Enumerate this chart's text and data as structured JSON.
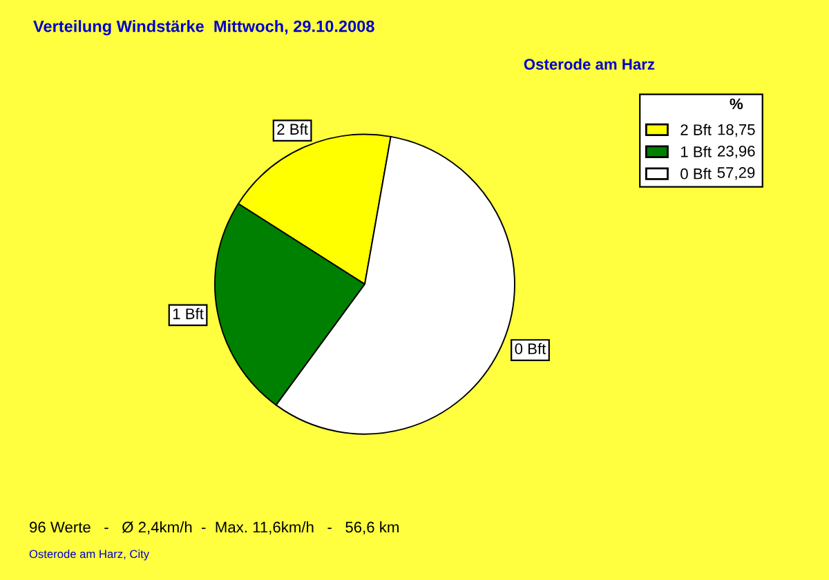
{
  "chart_data": {
    "type": "pie",
    "title": "Verteilung Windstärke  Mittwoch, 29.10.2008",
    "subtitle": "Osterode am Harz",
    "categories": [
      "2 Bft",
      "1 Bft",
      "0 Bft"
    ],
    "values": [
      18.75,
      23.96,
      57.29
    ],
    "value_labels": [
      "18,75",
      "23,96",
      "57,29"
    ],
    "colors": [
      "#ffff00",
      "#008000",
      "#ffffff"
    ],
    "legend": "top right",
    "legend_title": "%",
    "annotations": [
      "96 Werte   -   Ø 2,4km/h  -  Max. 11,6km/h   -   56,6 km",
      "Osterode am Harz, City"
    ]
  }
}
